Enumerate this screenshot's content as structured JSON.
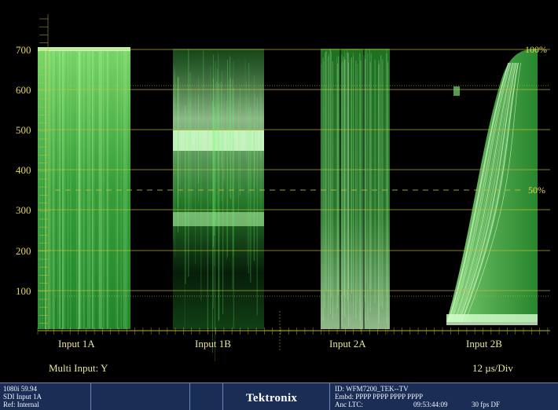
{
  "waveform": {
    "y_ticks": [
      "700",
      "600",
      "500",
      "400",
      "300",
      "200",
      "100"
    ],
    "percent_100": "100%",
    "percent_50": "50%",
    "inputs": [
      "Input 1A",
      "Input 1B",
      "Input 2A",
      "Input 2B"
    ],
    "mode_label": "Multi Input: Y",
    "sweep_label": "12 µs/Div",
    "trace_color": "#3bd14a",
    "graticule_color": "#c8c23a"
  },
  "status": {
    "format": "1080i 59.94",
    "input": "SDI Input 1A",
    "ref": "Ref: Internal",
    "brand": "Tektronix",
    "id": "ID: WFM7200_TEK--TV",
    "embd": "Embd: PPPP PPPP PPPP PPPP",
    "anc_ltc": "Anc LTC:",
    "timecode": "09:53:44:09",
    "fps": "30 fps DF"
  }
}
